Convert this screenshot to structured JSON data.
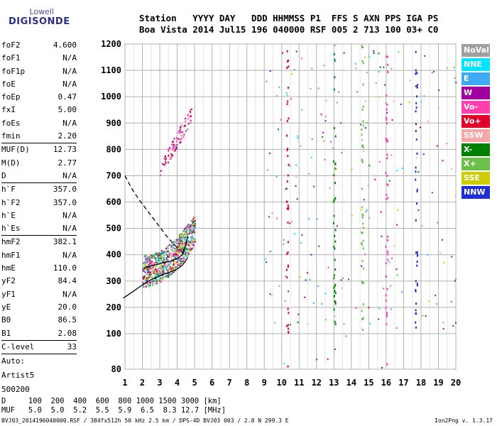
{
  "logo": {
    "line1": "Lowell",
    "line2": "DIGISONDE"
  },
  "header": {
    "line1": "Station   YYYY DAY   DDD HHMMSS P1  FFS S AXN PPS IGA PS",
    "line2": "Boa Vista 2014 Jul15 196 040000 RSF 005 2 713 100 03+ C0"
  },
  "params": {
    "group1": [
      {
        "k": "foF2",
        "v": "4.600"
      },
      {
        "k": "foF1",
        "v": "N/A"
      },
      {
        "k": "foF1p",
        "v": "N/A"
      },
      {
        "k": "foE",
        "v": "N/A"
      },
      {
        "k": "foEp",
        "v": "0.47"
      },
      {
        "k": "fxI",
        "v": "5.00"
      },
      {
        "k": "foEs",
        "v": "N/A"
      },
      {
        "k": "fmin",
        "v": "2.20"
      }
    ],
    "group2": [
      {
        "k": "MUF(D)",
        "v": "12.73"
      },
      {
        "k": "M(D)",
        "v": "2.77"
      },
      {
        "k": "D",
        "v": "N/A"
      }
    ],
    "group3": [
      {
        "k": "h`F",
        "v": "357.0"
      },
      {
        "k": "h`F2",
        "v": "357.0"
      },
      {
        "k": "h`E",
        "v": "N/A"
      },
      {
        "k": "h`Es",
        "v": "N/A"
      }
    ],
    "group4": [
      {
        "k": "hmF2",
        "v": "382.1"
      },
      {
        "k": "hmF1",
        "v": "N/A"
      },
      {
        "k": "hmE",
        "v": "110.0"
      },
      {
        "k": "yF2",
        "v": "84.4"
      },
      {
        "k": "yF1",
        "v": "N/A"
      },
      {
        "k": "yE",
        "v": "20.0"
      },
      {
        "k": "B0",
        "v": "86.5"
      },
      {
        "k": "B1",
        "v": "2.08"
      }
    ],
    "group5": [
      {
        "k": "C-level",
        "v": "33"
      }
    ],
    "auto": [
      "Auto:",
      "Artist5",
      "500200"
    ]
  },
  "legend": [
    {
      "label": "NoVal",
      "color": "#a0a0a0"
    },
    {
      "label": "NNE",
      "color": "#00e5ff"
    },
    {
      "label": "E",
      "color": "#3fa9f5"
    },
    {
      "label": "W",
      "color": "#a000a0"
    },
    {
      "label": "Vo-",
      "color": "#ff3fae"
    },
    {
      "label": "Vo+",
      "color": "#e0002a"
    },
    {
      "label": "SSW",
      "color": "#f5a6a6"
    },
    {
      "label": "X-",
      "color": "#008000"
    },
    {
      "label": "X+",
      "color": "#6bbf4a"
    },
    {
      "label": "SSE",
      "color": "#cccc00"
    },
    {
      "label": "NNW",
      "color": "#1f2fd0"
    }
  ],
  "chart_data": {
    "type": "scatter",
    "x_ticks": [
      1,
      2,
      3,
      4,
      5,
      6,
      7,
      8,
      9,
      10,
      11,
      12,
      13,
      14,
      15,
      16,
      17,
      18,
      19,
      20
    ],
    "y_ticks": [
      80,
      100,
      200,
      300,
      400,
      500,
      600,
      700,
      800,
      900,
      1000,
      1100,
      1200
    ],
    "xlim": [
      1,
      20
    ],
    "ylim": [
      80,
      1200
    ],
    "grid": true,
    "trace_virtual": [
      [
        2.0,
        345
      ],
      [
        2.4,
        355
      ],
      [
        2.8,
        362
      ],
      [
        3.2,
        370
      ],
      [
        3.6,
        375
      ],
      [
        4.0,
        385
      ],
      [
        4.3,
        400
      ],
      [
        4.5,
        440
      ],
      [
        4.6,
        470
      ]
    ],
    "profile_solid": [
      [
        0.9,
        235
      ],
      [
        1.5,
        262
      ],
      [
        2.0,
        285
      ],
      [
        2.5,
        305
      ],
      [
        3.0,
        320
      ],
      [
        3.5,
        332
      ],
      [
        4.0,
        345
      ],
      [
        4.3,
        360
      ],
      [
        4.5,
        378
      ],
      [
        4.6,
        390
      ]
    ],
    "profile_dashed": [
      [
        1.0,
        700
      ],
      [
        1.4,
        650
      ],
      [
        1.8,
        610
      ],
      [
        2.2,
        575
      ],
      [
        2.6,
        540
      ],
      [
        3.0,
        505
      ],
      [
        3.4,
        470
      ],
      [
        3.8,
        440
      ],
      [
        4.2,
        415
      ],
      [
        4.5,
        400
      ]
    ]
  },
  "dtable": {
    "line1": "D     100  200  400  600  800 1000 1500 3000 [km]",
    "line2": "MUF   5.0  5.0  5.2  5.5  5.9  6.5  8.3 12.7 [MHz]"
  },
  "footer": "BVJ03_2014196040000.RSF / 384fx512h 50 kHz 2.5 km / DPS-4D BVJ03 003 / 2.8 N 299.3 E",
  "version": "Ion2Png v. 1.3.17"
}
